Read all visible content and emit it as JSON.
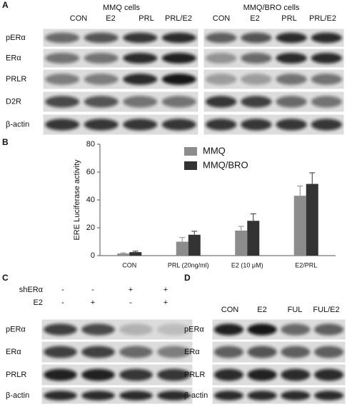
{
  "panel_labels": [
    "A",
    "B",
    "C",
    "D"
  ],
  "panel_a": {
    "left_title": "MMQ cells",
    "right_title": "MMQ/BRO cells",
    "left_columns": [
      "CON",
      "E2",
      "PRL",
      "PRL/E2"
    ],
    "right_columns": [
      "CON",
      "E2",
      "PRL",
      "PRL/E2"
    ],
    "rows": [
      "pERα",
      "ERα",
      "PRLR",
      "D2R",
      "β-actin"
    ]
  },
  "chart_data": {
    "type": "bar",
    "ylabel": "ERE Luciferase activity",
    "categories": [
      "CON",
      "PRL (20ng/ml)",
      "E2 (10 μM)",
      "E2/PRL"
    ],
    "series": [
      {
        "name": "MMQ",
        "color": "#8c8c8c",
        "values": [
          1.5,
          10,
          18,
          43
        ],
        "errors": [
          0.5,
          3,
          3,
          7
        ]
      },
      {
        "name": "MMQ/BRO",
        "color": "#333333",
        "values": [
          2.5,
          15,
          25,
          51.5
        ],
        "errors": [
          0.7,
          2.5,
          5,
          8
        ]
      }
    ],
    "ylim": [
      0,
      80
    ],
    "yticks": [
      0,
      20,
      40,
      60,
      80
    ]
  },
  "panel_c": {
    "condition_labels": [
      "shERα",
      "E2"
    ],
    "signs": [
      [
        "-",
        "-",
        "+",
        "+"
      ],
      [
        "-",
        "+",
        "-",
        "+"
      ]
    ],
    "rows": [
      "pERα",
      "ERα",
      "PRLR",
      "β-actin"
    ]
  },
  "panel_d": {
    "columns": [
      "CON",
      "E2",
      "FUL",
      "FUL/E2"
    ],
    "rows": [
      "pERα",
      "ERα",
      "PRLR",
      "β-actin"
    ]
  }
}
